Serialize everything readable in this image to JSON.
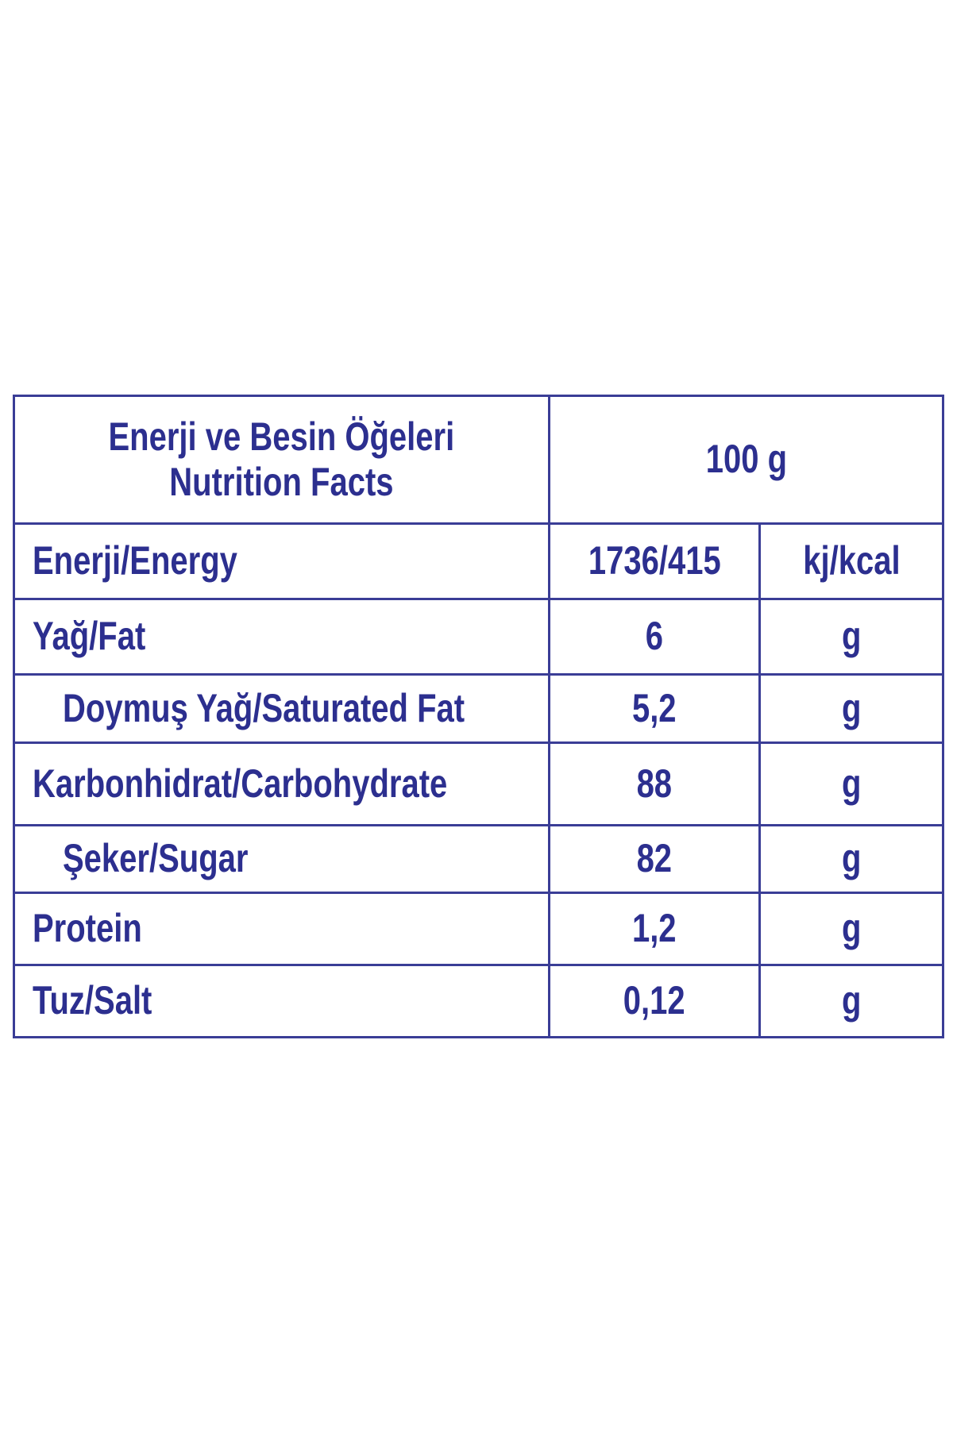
{
  "header": {
    "title_tr": "Enerji ve Besin Öğeleri",
    "title_en": "Nutrition Facts",
    "portion": "100 g"
  },
  "rows": [
    {
      "label": "Enerji/Energy",
      "value": "1736/415",
      "unit": "kj/kcal",
      "indent": false
    },
    {
      "label": "Yağ/Fat",
      "value": "6",
      "unit": "g",
      "indent": false
    },
    {
      "label": "Doymuş Yağ/Saturated Fat",
      "value": "5,2",
      "unit": "g",
      "indent": true
    },
    {
      "label": "Karbonhidrat/Carbohydrate",
      "value": "88",
      "unit": "g",
      "indent": false
    },
    {
      "label": "Şeker/Sugar",
      "value": "82",
      "unit": "g",
      "indent": true
    },
    {
      "label": "Protein",
      "value": "1,2",
      "unit": "g",
      "indent": false
    },
    {
      "label": "Tuz/Salt",
      "value": "0,12",
      "unit": "g",
      "indent": false
    }
  ],
  "colors": {
    "text": "#2c2f8f",
    "border": "#3a3d96",
    "background": "#ffffff"
  }
}
